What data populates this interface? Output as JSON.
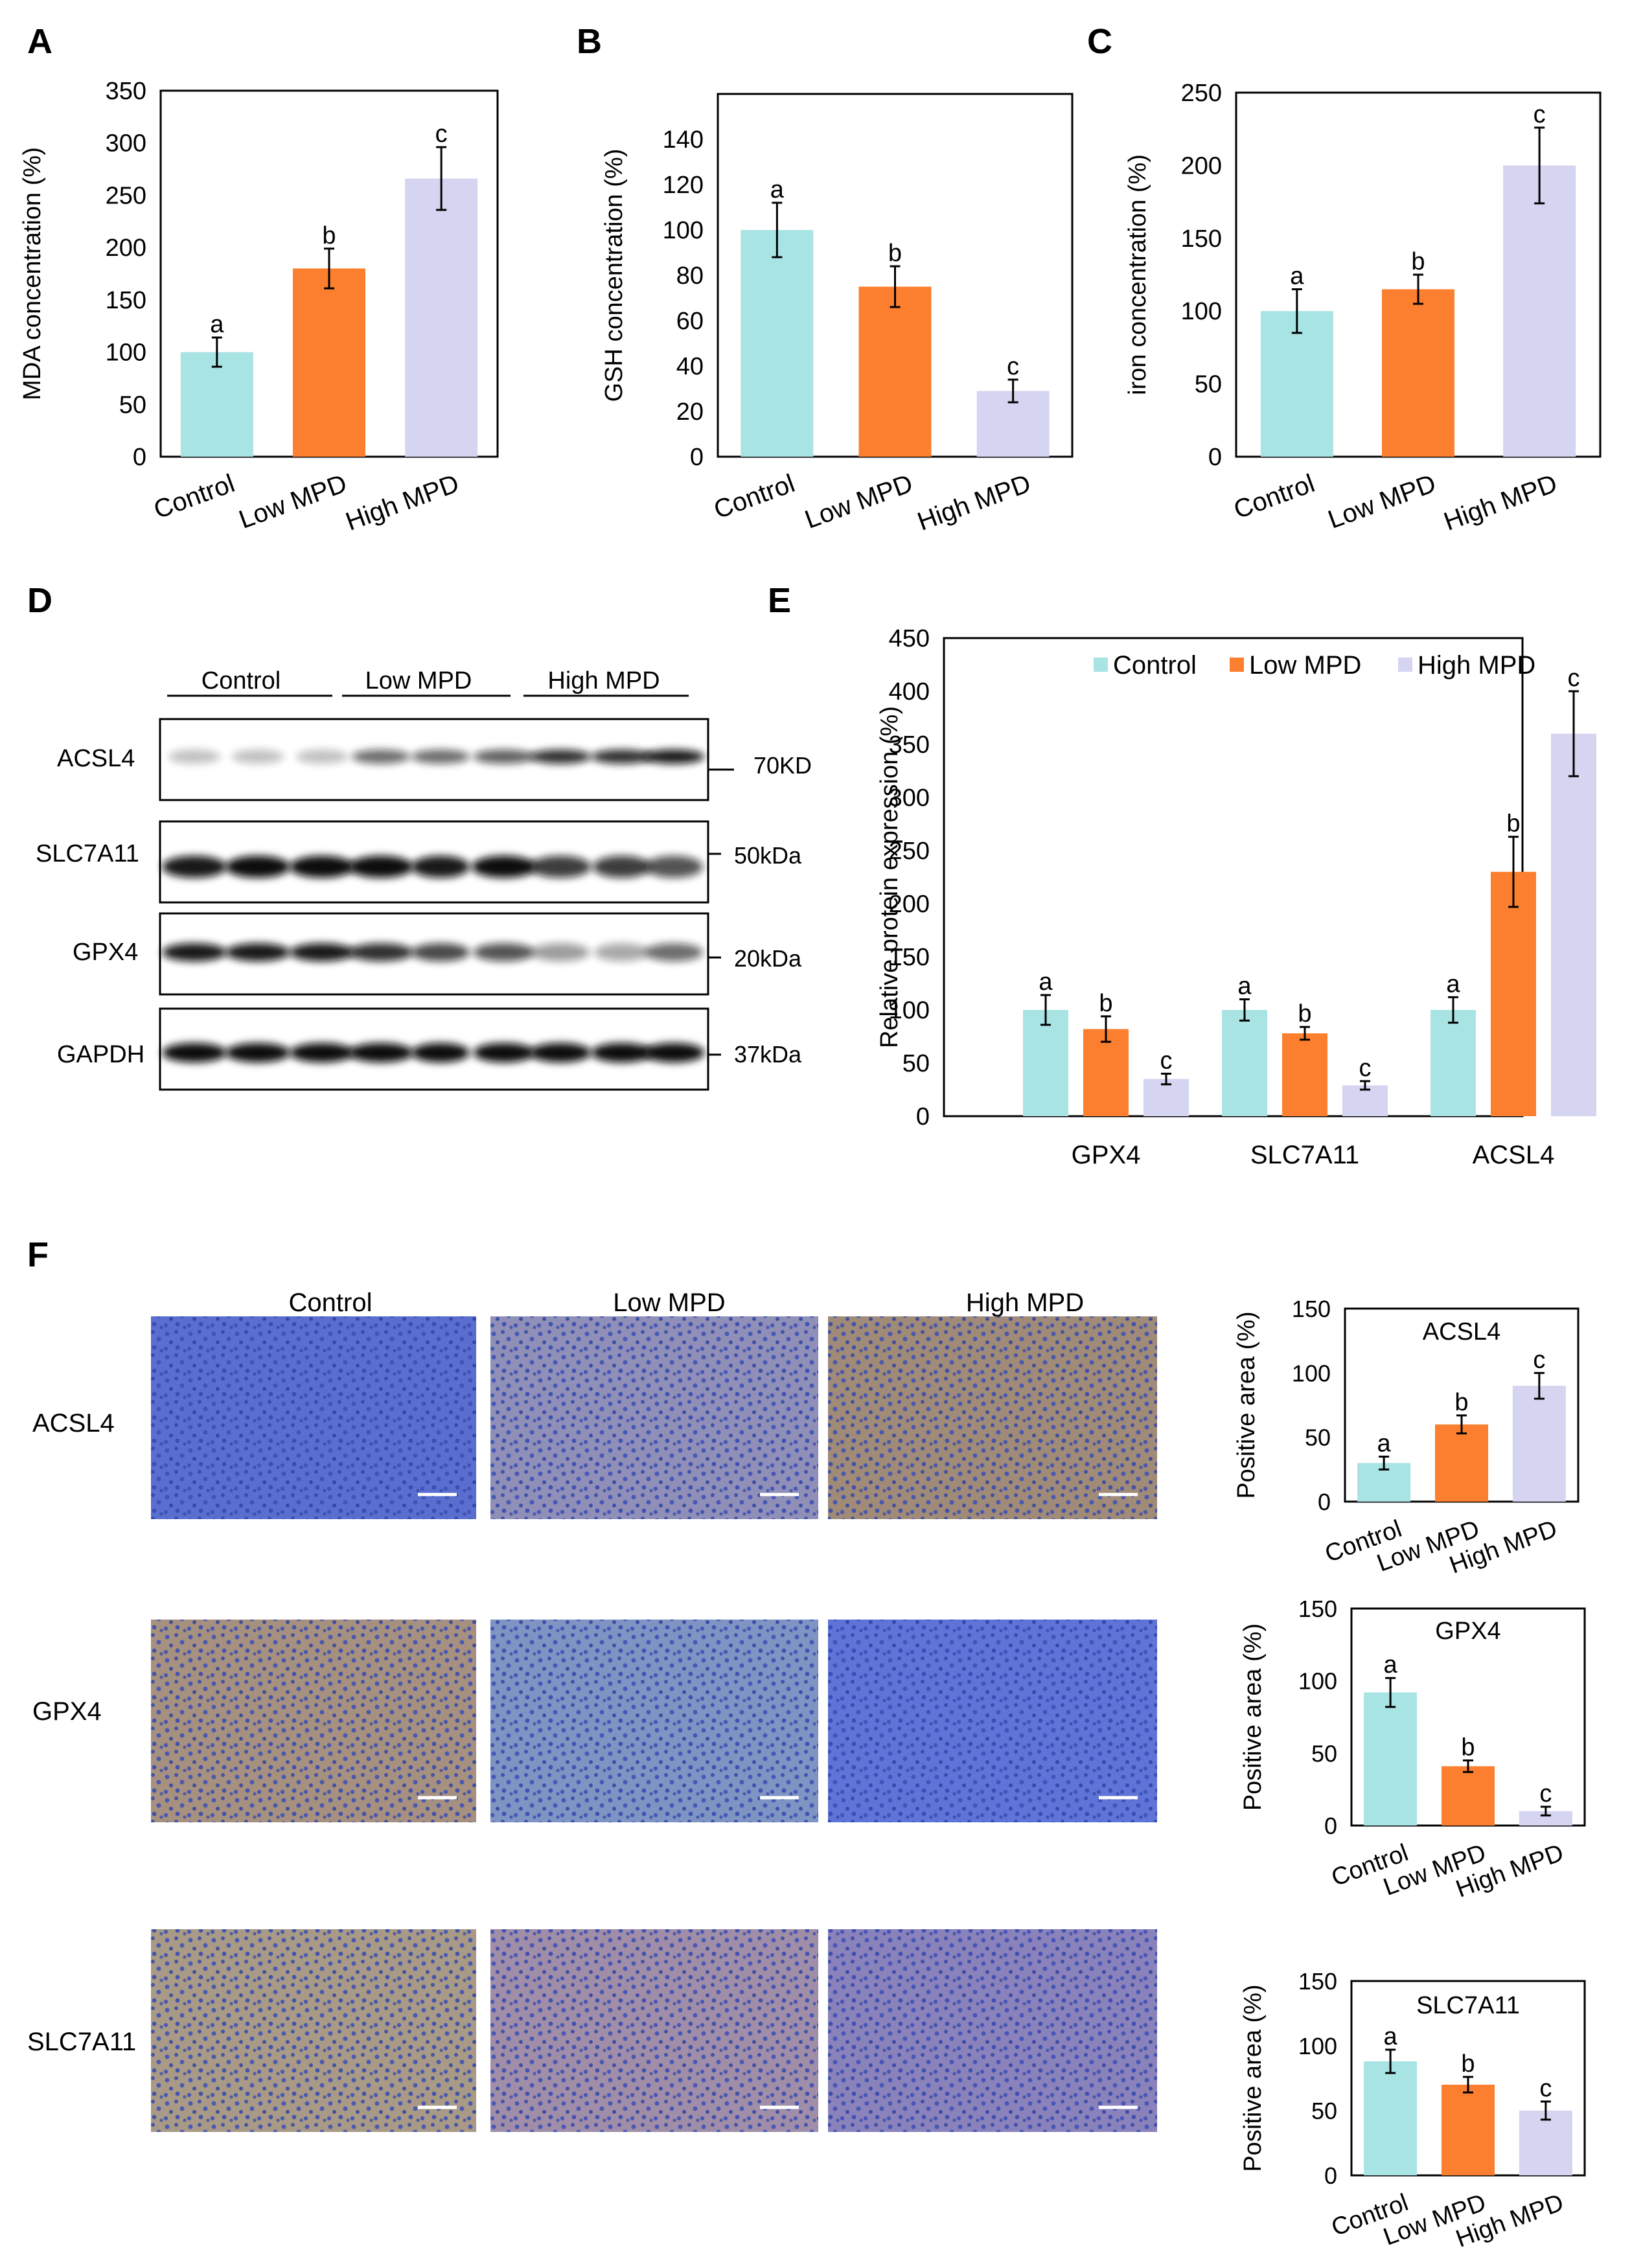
{
  "colors": {
    "control": "#A8E4E3",
    "low": "#FB7F2E",
    "high": "#D5D4F1",
    "axis": "#000000"
  },
  "panel_letters": [
    "A",
    "B",
    "C",
    "D",
    "E",
    "F"
  ],
  "chart_data": [
    {
      "id": "A",
      "type": "bar",
      "categories": [
        "Control",
        "Low MPD",
        "High MPD"
      ],
      "values": [
        100,
        180,
        266
      ],
      "errors": [
        14,
        19,
        30
      ],
      "sig": [
        "a",
        "b",
        "c"
      ],
      "ylabel": "MDA concentration (%)",
      "ylim": [
        0,
        350
      ],
      "yticks": [
        0,
        50,
        100,
        150,
        200,
        250,
        300,
        350
      ]
    },
    {
      "id": "B",
      "type": "bar",
      "categories": [
        "Control",
        "Low MPD",
        "High MPD"
      ],
      "values": [
        100,
        75,
        29
      ],
      "errors": [
        12,
        9,
        5
      ],
      "sig": [
        "a",
        "b",
        "c"
      ],
      "ylabel": "GSH concentration (%)",
      "ylim": [
        0,
        160
      ],
      "yticks": [
        0,
        20,
        40,
        60,
        80,
        100,
        120,
        140
      ]
    },
    {
      "id": "C",
      "type": "bar",
      "categories": [
        "Control",
        "Low MPD",
        "High MPD"
      ],
      "values": [
        100,
        115,
        200
      ],
      "errors": [
        15,
        10,
        26
      ],
      "sig": [
        "a",
        "b",
        "c"
      ],
      "ylabel": "iron concentration (%)",
      "ylim": [
        0,
        250
      ],
      "yticks": [
        0,
        50,
        100,
        150,
        200,
        250
      ]
    },
    {
      "id": "E",
      "type": "bar",
      "categories": [
        "GPX4",
        "SLC7A11",
        "ACSL4"
      ],
      "series": [
        {
          "name": "Control",
          "values": [
            100,
            100,
            100
          ],
          "errors": [
            14,
            10,
            12
          ],
          "sig": [
            "a",
            "a",
            "a"
          ]
        },
        {
          "name": "Low MPD",
          "values": [
            82,
            78,
            230
          ],
          "errors": [
            12,
            6,
            33
          ],
          "sig": [
            "b",
            "b",
            "b"
          ]
        },
        {
          "name": "High MPD",
          "values": [
            35,
            29,
            360
          ],
          "errors": [
            5,
            4,
            40
          ],
          "sig": [
            "c",
            "c",
            "c"
          ]
        }
      ],
      "ylabel": "Relative protein expression (%)",
      "ylim": [
        0,
        450
      ],
      "yticks": [
        0,
        50,
        100,
        150,
        200,
        250,
        300,
        350,
        400,
        450
      ],
      "legend": [
        "Control",
        "Low MPD",
        "High MPD"
      ]
    },
    {
      "id": "F-ACSL4",
      "type": "bar",
      "title": "ACSL4",
      "categories": [
        "Control",
        "Low MPD",
        "High MPD"
      ],
      "values": [
        30,
        60,
        90
      ],
      "errors": [
        5,
        7,
        10
      ],
      "sig": [
        "a",
        "b",
        "c"
      ],
      "ylabel": "Positive area (%)",
      "ylim": [
        0,
        150
      ],
      "yticks": [
        0,
        50,
        100,
        150
      ]
    },
    {
      "id": "F-GPX4",
      "type": "bar",
      "title": "GPX4",
      "categories": [
        "Control",
        "Low MPD",
        "High MPD"
      ],
      "values": [
        92,
        41,
        10
      ],
      "errors": [
        10,
        4,
        3
      ],
      "sig": [
        "a",
        "b",
        "c"
      ],
      "ylabel": "Positive area (%)",
      "ylim": [
        0,
        150
      ],
      "yticks": [
        0,
        50,
        100,
        150
      ]
    },
    {
      "id": "F-SLC7A11",
      "type": "bar",
      "title": "SLC7A11",
      "categories": [
        "Control",
        "Low MPD",
        "High MPD"
      ],
      "values": [
        88,
        70,
        50
      ],
      "errors": [
        9,
        6,
        7
      ],
      "sig": [
        "a",
        "b",
        "c"
      ],
      "ylabel": "Positive area (%)",
      "ylim": [
        0,
        150
      ],
      "yticks": [
        0,
        50,
        100,
        150
      ]
    }
  ],
  "western_blot": {
    "groups": [
      "Control",
      "Low MPD",
      "High MPD"
    ],
    "rows": [
      {
        "protein": "ACSL4",
        "marker": "70KD"
      },
      {
        "protein": "SLC7A11",
        "marker": "50kDa"
      },
      {
        "protein": "GPX4",
        "marker": "20kDa"
      },
      {
        "protein": "GAPDH",
        "marker": "37kDa"
      }
    ]
  },
  "ihc": {
    "columns": [
      "Control",
      "Low MPD",
      "High MPD"
    ],
    "rows": [
      "ACSL4",
      "GPX4",
      "SLC7A11"
    ]
  }
}
